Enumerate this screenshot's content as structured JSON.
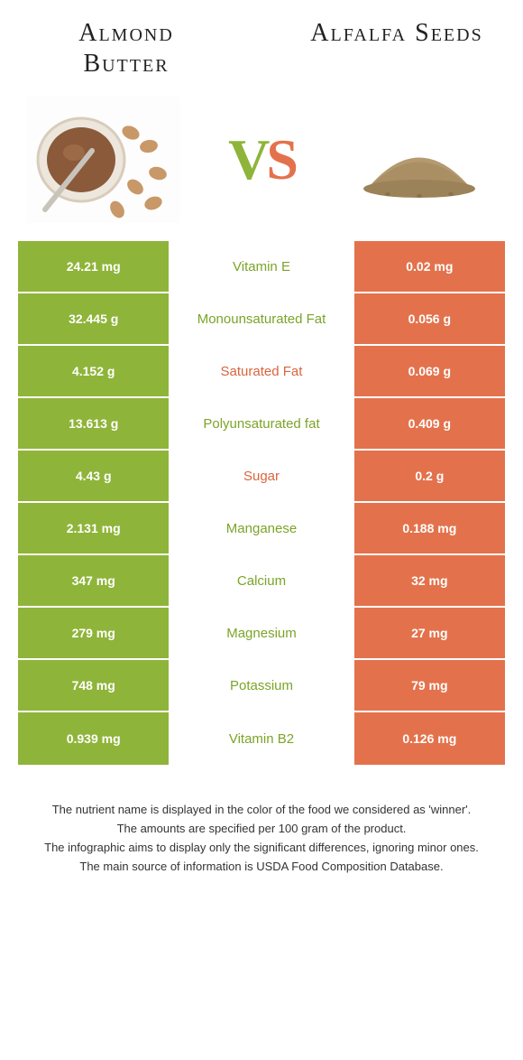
{
  "left_title": "Almond Butter",
  "right_title": "Alfalfa Seeds",
  "vs_v": "V",
  "vs_s": "S",
  "colors": {
    "left": "#8fb43a",
    "right": "#e3724c"
  },
  "rows": [
    {
      "left": "24.21 mg",
      "label": "Vitamin E",
      "right": "0.02 mg",
      "winner": "left"
    },
    {
      "left": "32.445 g",
      "label": "Monounsaturated Fat",
      "right": "0.056 g",
      "winner": "left"
    },
    {
      "left": "4.152 g",
      "label": "Saturated Fat",
      "right": "0.069 g",
      "winner": "right"
    },
    {
      "left": "13.613 g",
      "label": "Polyunsaturated fat",
      "right": "0.409 g",
      "winner": "left"
    },
    {
      "left": "4.43 g",
      "label": "Sugar",
      "right": "0.2 g",
      "winner": "right"
    },
    {
      "left": "2.131 mg",
      "label": "Manganese",
      "right": "0.188 mg",
      "winner": "left"
    },
    {
      "left": "347 mg",
      "label": "Calcium",
      "right": "32 mg",
      "winner": "left"
    },
    {
      "left": "279 mg",
      "label": "Magnesium",
      "right": "27 mg",
      "winner": "left"
    },
    {
      "left": "748 mg",
      "label": "Potassium",
      "right": "79 mg",
      "winner": "left"
    },
    {
      "left": "0.939 mg",
      "label": "Vitamin B2",
      "right": "0.126 mg",
      "winner": "left"
    }
  ],
  "footer": {
    "line1": "The nutrient name is displayed in the color of the food we considered as 'winner'.",
    "line2": "The amounts are specified per 100 gram of the product.",
    "line3": "The infographic aims to display only the significant differences, ignoring minor ones.",
    "line4": "The main source of information is USDA Food Composition Database."
  }
}
